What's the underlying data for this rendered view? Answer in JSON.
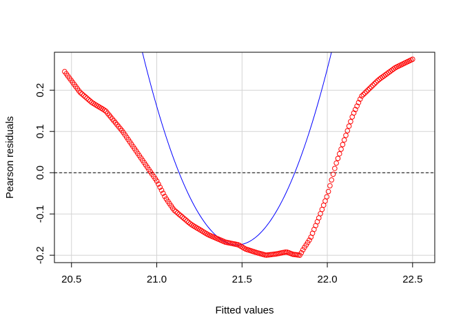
{
  "chart_data": {
    "type": "scatter",
    "title": "",
    "xlabel": "Fitted values",
    "ylabel": "Pearson residuals",
    "xlim": [
      20.4,
      22.63
    ],
    "ylim": [
      -0.218,
      0.292
    ],
    "xticks": [
      20.5,
      21.0,
      21.5,
      22.0,
      22.5
    ],
    "xtick_labels": [
      "20.5",
      "21.0",
      "21.5",
      "22.0",
      "22.5"
    ],
    "yticks": [
      -0.2,
      -0.1,
      0.0,
      0.1,
      0.2
    ],
    "ytick_labels": [
      "-0.2",
      "-0.1",
      "0.0",
      "0.1",
      "0.2"
    ],
    "grid": true,
    "reference_line": {
      "y": 0.0,
      "style": "dashed",
      "color": "#000000"
    },
    "residual_points": {
      "color": "#ff0000",
      "marker": "open-circle",
      "count": 220,
      "x_range": [
        20.46,
        22.5
      ],
      "knots_x": [
        20.46,
        20.55,
        20.62,
        20.7,
        20.8,
        20.9,
        20.95,
        21.0,
        21.05,
        21.1,
        21.2,
        21.3,
        21.4,
        21.48,
        21.52,
        21.58,
        21.64,
        21.7,
        21.76,
        21.8,
        21.84,
        21.86,
        21.9,
        21.95,
        22.0,
        22.02,
        22.05,
        22.1,
        22.15,
        22.2,
        22.3,
        22.4,
        22.5
      ],
      "knots_y": [
        0.245,
        0.195,
        0.17,
        0.15,
        0.1,
        0.04,
        0.01,
        -0.02,
        -0.06,
        -0.09,
        -0.125,
        -0.15,
        -0.168,
        -0.175,
        -0.185,
        -0.193,
        -0.2,
        -0.197,
        -0.192,
        -0.198,
        -0.2,
        -0.185,
        -0.16,
        -0.11,
        -0.055,
        -0.025,
        0.02,
        0.08,
        0.14,
        0.185,
        0.225,
        0.255,
        0.275
      ]
    },
    "smooth_curve": {
      "color": "#0000ff",
      "type": "quadratic",
      "coefficients": {
        "a": 1.52,
        "vertex_x": 21.47,
        "vertex_y": -0.175
      }
    }
  }
}
